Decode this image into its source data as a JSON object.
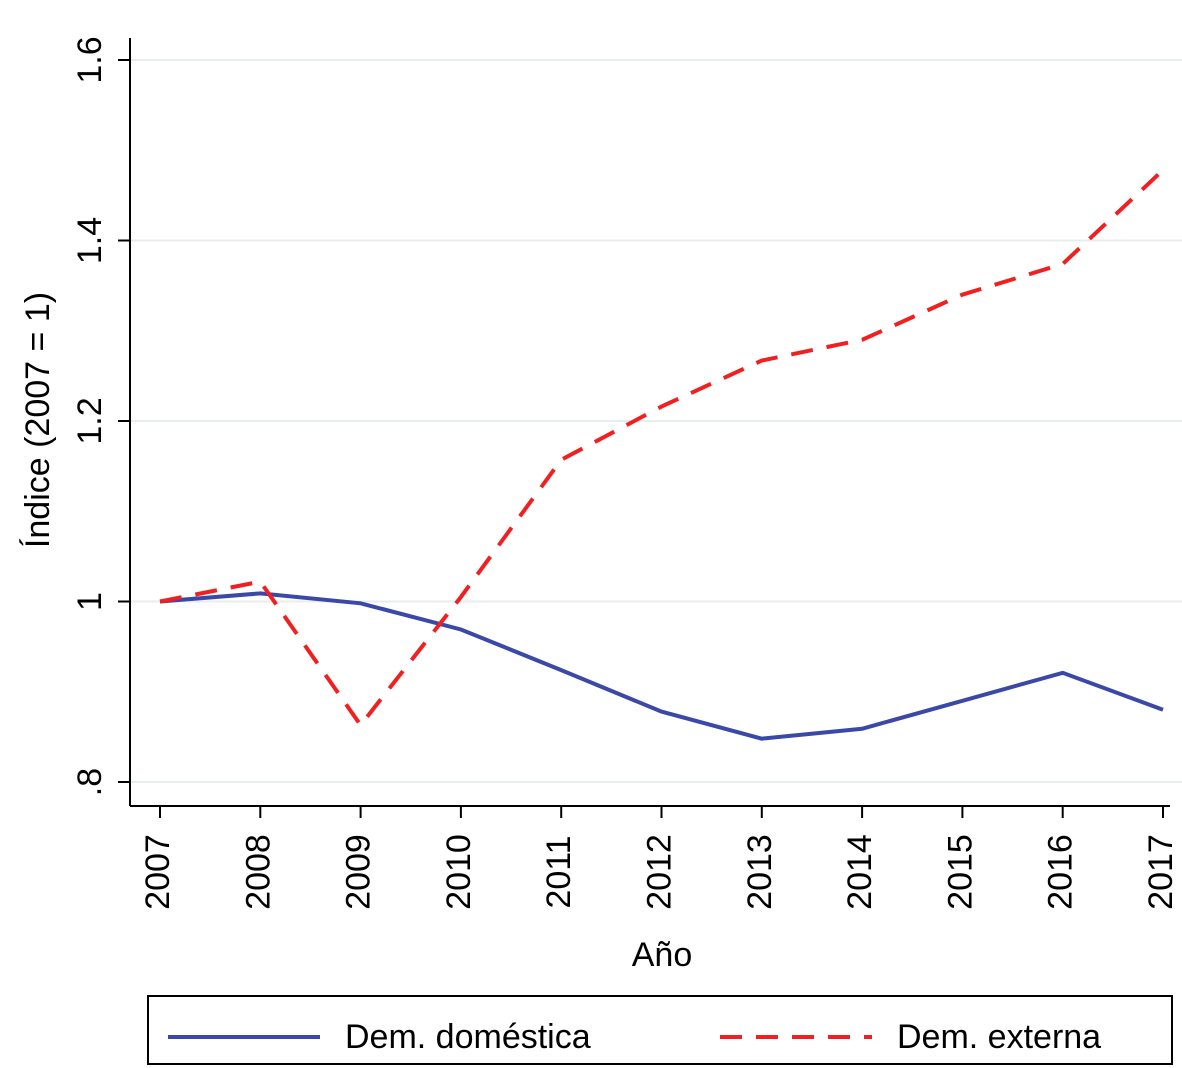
{
  "chart_data": {
    "type": "line",
    "x": [
      2007,
      2008,
      2009,
      2010,
      2011,
      2012,
      2013,
      2014,
      2015,
      2016,
      2017
    ],
    "xlim": [
      2007,
      2017
    ],
    "xticks": [
      2007,
      2008,
      2009,
      2010,
      2011,
      2012,
      2013,
      2014,
      2015,
      2016,
      2017
    ],
    "ylim": [
      0.8,
      1.6
    ],
    "yticks": [
      {
        "value": 0.8,
        "label": ".8"
      },
      1,
      1.2,
      1.4,
      1.6
    ],
    "x_label": "Año",
    "y_label": "Índice (2007 = 1)",
    "grid": true,
    "legend": "bottom",
    "series": [
      {
        "name": "Dem. doméstica",
        "color": "#3a48a8",
        "dash": "solid",
        "values": [
          1.0,
          1.009,
          0.998,
          0.969,
          0.924,
          0.878,
          0.848,
          0.859,
          0.89,
          0.921,
          0.88
        ]
      },
      {
        "name": "Dem. externa",
        "color": "#f02020",
        "dash": "dashed",
        "values": [
          1.0,
          1.022,
          0.863,
          1.005,
          1.157,
          1.216,
          1.267,
          1.29,
          1.34,
          1.374,
          1.478
        ]
      }
    ]
  }
}
